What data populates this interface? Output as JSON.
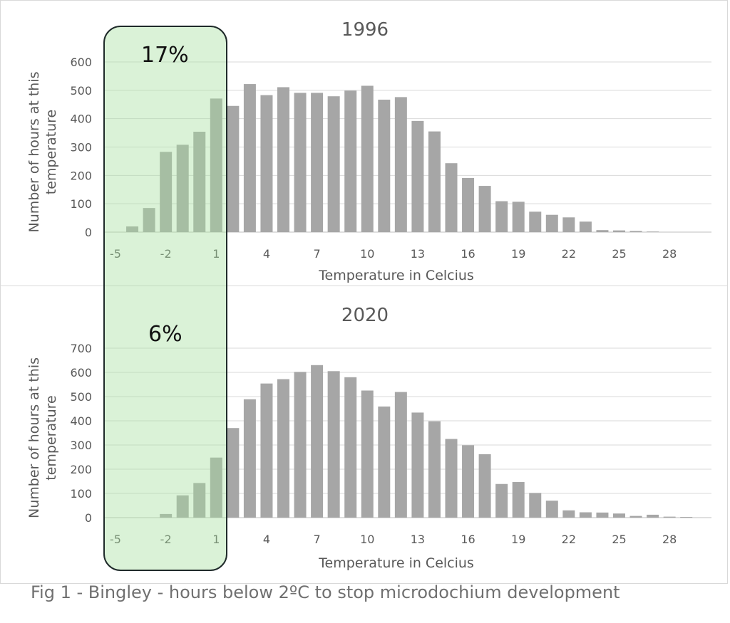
{
  "caption": "Fig 1 - Bingley - hours below 2ºC to stop microdochium development",
  "highlight": {
    "threshold_label": "below 2ºC",
    "percent_1996": "17%",
    "percent_2020": "6%",
    "fill_color": "#a7e0a0",
    "border_color": "#1f2a2a"
  },
  "chart_data": [
    {
      "type": "bar",
      "title": "1996",
      "xlabel": "Temperature in Celcius",
      "ylabel": "Number of hours at this temperature",
      "x": [
        -5,
        -4,
        -3,
        -2,
        -1,
        0,
        1,
        2,
        3,
        4,
        5,
        6,
        7,
        8,
        9,
        10,
        11,
        12,
        13,
        14,
        15,
        16,
        17,
        18,
        19,
        20,
        21,
        22,
        23,
        24,
        25,
        26,
        27,
        28,
        29
      ],
      "values": [
        0,
        20,
        85,
        283,
        308,
        354,
        471,
        445,
        522,
        483,
        511,
        491,
        491,
        479,
        499,
        516,
        467,
        476,
        392,
        355,
        243,
        191,
        163,
        109,
        107,
        72,
        61,
        52,
        37,
        7,
        6,
        4,
        2,
        0,
        0
      ],
      "x_ticks": [
        "-5",
        "-2",
        "1",
        "4",
        "7",
        "10",
        "13",
        "16",
        "19",
        "22",
        "25",
        "28"
      ],
      "y_ticks": [
        0,
        100,
        200,
        300,
        400,
        500,
        600
      ],
      "ylim": [
        0,
        600
      ],
      "grid": true,
      "bar_color": "#a6a6a6"
    },
    {
      "type": "bar",
      "title": "2020",
      "xlabel": "Temperature  in Celcius",
      "ylabel": "Number of hours at this temperature",
      "x": [
        -5,
        -4,
        -3,
        -2,
        -1,
        0,
        1,
        2,
        3,
        4,
        5,
        6,
        7,
        8,
        9,
        10,
        11,
        12,
        13,
        14,
        15,
        16,
        17,
        18,
        19,
        20,
        21,
        22,
        23,
        24,
        25,
        26,
        27,
        28,
        29
      ],
      "values": [
        0,
        0,
        0,
        15,
        92,
        143,
        248,
        370,
        489,
        554,
        572,
        602,
        630,
        605,
        580,
        525,
        459,
        519,
        434,
        398,
        325,
        299,
        262,
        139,
        147,
        102,
        70,
        30,
        22,
        21,
        17,
        7,
        12,
        4,
        3
      ],
      "x_ticks": [
        "-5",
        "-2",
        "1",
        "4",
        "7",
        "10",
        "13",
        "16",
        "19",
        "22",
        "25",
        "28"
      ],
      "y_ticks": [
        0,
        100,
        200,
        300,
        400,
        500,
        600,
        700
      ],
      "ylim": [
        0,
        700
      ],
      "grid": true,
      "bar_color": "#a6a6a6"
    }
  ]
}
